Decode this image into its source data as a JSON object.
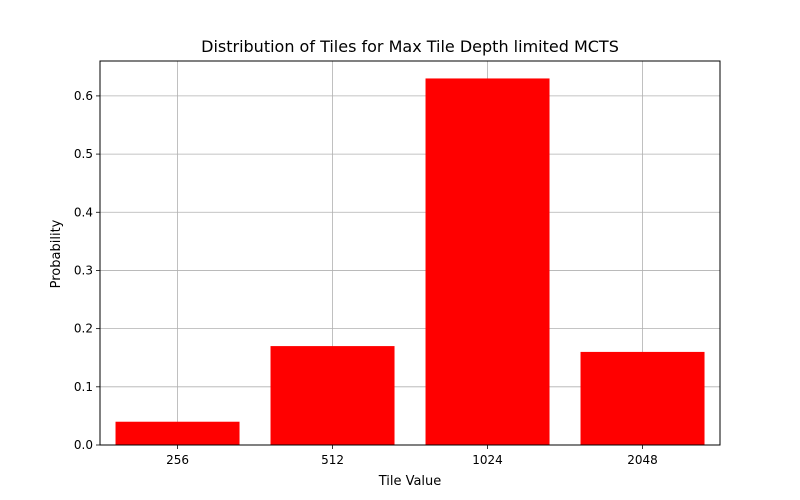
{
  "chart_data": {
    "type": "bar",
    "title": "Distribution of Tiles for Max Tile Depth limited MCTS",
    "xlabel": "Tile Value",
    "ylabel": "Probability",
    "x_scale": "log2",
    "categories": [
      "256",
      "512",
      "1024",
      "2048"
    ],
    "x": [
      256,
      512,
      1024,
      2048
    ],
    "values": [
      0.04,
      0.17,
      0.63,
      0.16
    ],
    "xlim": [
      181,
      2896
    ],
    "ylim": [
      0,
      0.66
    ],
    "yticks": [
      0.0,
      0.1,
      0.2,
      0.3,
      0.4,
      0.5,
      0.6
    ],
    "ytick_labels": [
      "0.0",
      "0.1",
      "0.2",
      "0.3",
      "0.4",
      "0.5",
      "0.6"
    ],
    "grid": true,
    "colors": {
      "bar": "#ff0000",
      "grid": "#b0b0b0",
      "axis": "#000000"
    }
  }
}
